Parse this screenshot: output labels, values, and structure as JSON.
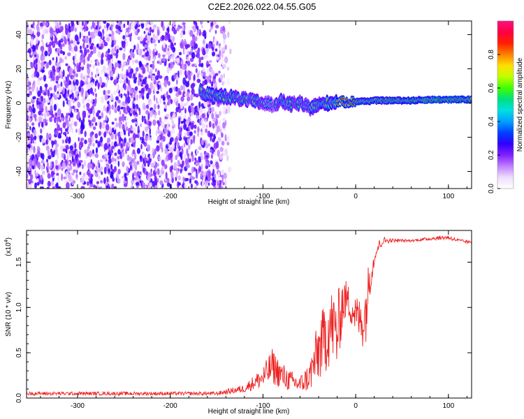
{
  "title": "C2E2.2026.022.04.55.G05",
  "chart_data": [
    {
      "type": "heatmap",
      "xlabel": "Height of straight line (km)",
      "ylabel": "Frequency (Hz)",
      "xlim": [
        -355,
        125
      ],
      "ylim": [
        -50,
        48
      ],
      "xticks": [
        -300,
        -200,
        -100,
        0,
        100
      ],
      "xtick_labels": [
        "-300",
        "-200",
        "-100",
        "0",
        "100"
      ],
      "yticks": [
        -40,
        -20,
        0,
        20,
        40
      ],
      "ytick_labels": [
        "-40",
        "-20",
        "0",
        "20",
        "40"
      ],
      "colorbar": {
        "label": "Normalized spectral amplitude",
        "range": [
          0,
          1
        ],
        "ticks": [
          0.0,
          0.2,
          0.4,
          0.6,
          0.8
        ],
        "tick_labels": [
          "0.0",
          "0.2",
          "0.4",
          "0.6",
          "0.8"
        ],
        "colors": [
          "#ffffff",
          "#f0dcff",
          "#c080ff",
          "#8020ff",
          "#3000ff",
          "#0040ff",
          "#00a0ff",
          "#00e0e0",
          "#00e080",
          "#40ff00",
          "#c0ff00",
          "#ffe000",
          "#ff8000",
          "#ff2000",
          "#ff0040",
          "#ff1080"
        ]
      },
      "noise_region_x": [
        -355,
        -135
      ],
      "signal_trace": {
        "x": [
          -168,
          -160,
          -150,
          -140,
          -130,
          -120,
          -110,
          -100,
          -90,
          -80,
          -70,
          -60,
          -50,
          -40,
          -30,
          -20,
          -10,
          0,
          10,
          20,
          40,
          60,
          80,
          100,
          125
        ],
        "freq": [
          7,
          5,
          4,
          4,
          3,
          2,
          1,
          0,
          -1,
          1,
          -1,
          0,
          -3,
          -1,
          0,
          1,
          0.5,
          1,
          1,
          1.5,
          1.5,
          1.5,
          2,
          2,
          2
        ],
        "amplitude": [
          0.55,
          0.6,
          0.65,
          0.62,
          0.6,
          0.58,
          0.55,
          0.55,
          0.5,
          0.6,
          0.55,
          0.6,
          0.6,
          0.65,
          0.7,
          0.75,
          0.8,
          0.8,
          0.8,
          0.82,
          0.82,
          0.85,
          0.88,
          0.9,
          0.88
        ]
      }
    },
    {
      "type": "line",
      "xlabel": "Height of straight line (km)",
      "ylabel": "SNR (10 * v/v)",
      "scale_label": "(x10",
      "scale_exp": "4",
      "xlim": [
        -355,
        125
      ],
      "ylim": [
        0,
        18500
      ],
      "xticks": [
        -300,
        -200,
        -100,
        0,
        100
      ],
      "xtick_labels": [
        "-300",
        "-200",
        "-100",
        "0",
        "100"
      ],
      "yticks": [
        0,
        5000,
        10000,
        15000
      ],
      "ytick_labels": [
        "0.0",
        "0.5",
        "1.0",
        "1.5"
      ],
      "color": "#ee2222",
      "envelope": {
        "x": [
          -355,
          -150,
          -120,
          -110,
          -100,
          -90,
          -80,
          -70,
          -60,
          -50,
          -40,
          -35,
          -30,
          -25,
          -20,
          -15,
          -10,
          -5,
          0,
          5,
          10,
          15,
          20,
          25,
          30,
          40,
          60,
          80,
          100,
          110,
          125
        ],
        "base": [
          300,
          300,
          600,
          900,
          1000,
          1500,
          1000,
          700,
          500,
          700,
          1500,
          2500,
          3000,
          4000,
          2500,
          7000,
          9000,
          8000,
          7000,
          6000,
          5000,
          11000,
          14500,
          15500,
          16500,
          17000,
          17100,
          17200,
          17200,
          17000,
          16800
        ],
        "peak": [
          700,
          700,
          1500,
          2500,
          3500,
          5500,
          4000,
          3000,
          2500,
          4000,
          9000,
          10000,
          12500,
          12000,
          11500,
          13500,
          13000,
          12000,
          11500,
          11000,
          13000,
          15500,
          16000,
          17500,
          17800,
          17600,
          17500,
          17800,
          18000,
          17600,
          17300
        ]
      }
    }
  ]
}
